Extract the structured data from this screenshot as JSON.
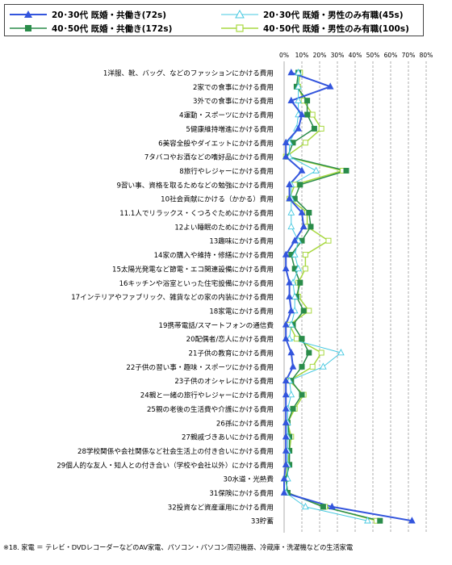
{
  "chart_data": {
    "type": "line",
    "orientation": "horizontal",
    "xlim": [
      0,
      80
    ],
    "x_ticks": [
      "0%",
      "10%",
      "20%",
      "30%",
      "40%",
      "50%",
      "60%",
      "70%",
      "80%"
    ],
    "grid": "vertical dashed",
    "legend_placement": "top",
    "categories": [
      "1洋服、靴、バッグ、などのファッションにかける費用",
      "2家での食事にかける費用",
      "3外での食事にかける費用",
      "4運動・スポーツにかける費用",
      "5健康維持増進にかける費用",
      "6美容全般やダイエットにかける費用",
      "7タバコやお酒などの嗜好品にかける費用",
      "8旅行やレジャーにかける費用",
      "9習い事、資格を取るためなどの勉強にかける費用",
      "10社会貢献にかける（かかる）費用",
      "11.1人でリラックス・くつろぐためにかける費用",
      "12よい睡眠のためにかける費用",
      "13趣味にかける費用",
      "14家の購入や維持・修繕にかける費用",
      "15太陽光発電など節電・エコ関連設備にかける費用",
      "16キッチンや浴室といった住宅設備にかける費用",
      "17インテリアやファブリック、雑貨などの家の内装にかける費用",
      "18家電にかける費用",
      "19携帯電話/スマートフォンの通信費",
      "20配偶者/恋人にかける費用",
      "21子供の教育にかける費用",
      "22子供の習い事・趣味・スポーツにかける費用",
      "23子供のオシャレにかける費用",
      "24親と一緒の旅行やレジャーにかける費用",
      "25親の老後の生活費や介護にかける費用",
      "26孫にかける費用",
      "27親戚づきあいにかける費用",
      "28学校関係や会社関係など社会生活上の付き合いにかける費用",
      "29個人的な友人・知人との付き合い（学校や会社以外）にかける費用",
      "30水道・光熱費",
      "31保険にかける費用",
      "32投資など資産運用にかける費用",
      "33貯蓄"
    ],
    "series": [
      {
        "name": "20･30代 既婚・共働き(72s)",
        "color": "#3355dd",
        "marker": "triangle-filled",
        "values": [
          4,
          26,
          4,
          10,
          8,
          1,
          1,
          10,
          3,
          3,
          10,
          11,
          6,
          1,
          1,
          3,
          3,
          4,
          1,
          1,
          4,
          5,
          1,
          1,
          1,
          1,
          1,
          1,
          1,
          0,
          0,
          27,
          72
        ]
      },
      {
        "name": "20･30代 既婚・男性のみ有職(45s)",
        "color": "#44c8e0",
        "marker": "triangle-open",
        "values": [
          8,
          8,
          8,
          8,
          7,
          3,
          3,
          18,
          4,
          4,
          4,
          4,
          8,
          6,
          8,
          5,
          6,
          6,
          4,
          3,
          32,
          22,
          3,
          4,
          2,
          2,
          2,
          2,
          2,
          2,
          1,
          12,
          47
        ]
      },
      {
        "name": "40･50代 既婚・共働き(172s)",
        "color": "#2a8c4a",
        "marker": "square-filled",
        "values": [
          8,
          7,
          13,
          13,
          17,
          5,
          2,
          35,
          9,
          6,
          14,
          15,
          10,
          4,
          6,
          9,
          7,
          11,
          5,
          10,
          14,
          10,
          4,
          10,
          5,
          2,
          3,
          3,
          3,
          1,
          2,
          22,
          54
        ]
      },
      {
        "name": "40･50代 既婚・男性のみ有職(100s)",
        "color": "#a8d840",
        "marker": "square-open",
        "values": [
          9,
          8,
          11,
          16,
          21,
          12,
          1,
          33,
          6,
          3,
          13,
          13,
          25,
          12,
          12,
          8,
          8,
          14,
          3,
          7,
          21,
          16,
          3,
          11,
          6,
          2,
          4,
          3,
          2,
          1,
          2,
          23,
          52
        ]
      }
    ]
  },
  "footnote": "※18. 家電 ＝ テレビ・DVDレコーダーなどのAV家電、パソコン・パソコン周辺機器、冷蔵庫・洗濯機などの生活家電"
}
